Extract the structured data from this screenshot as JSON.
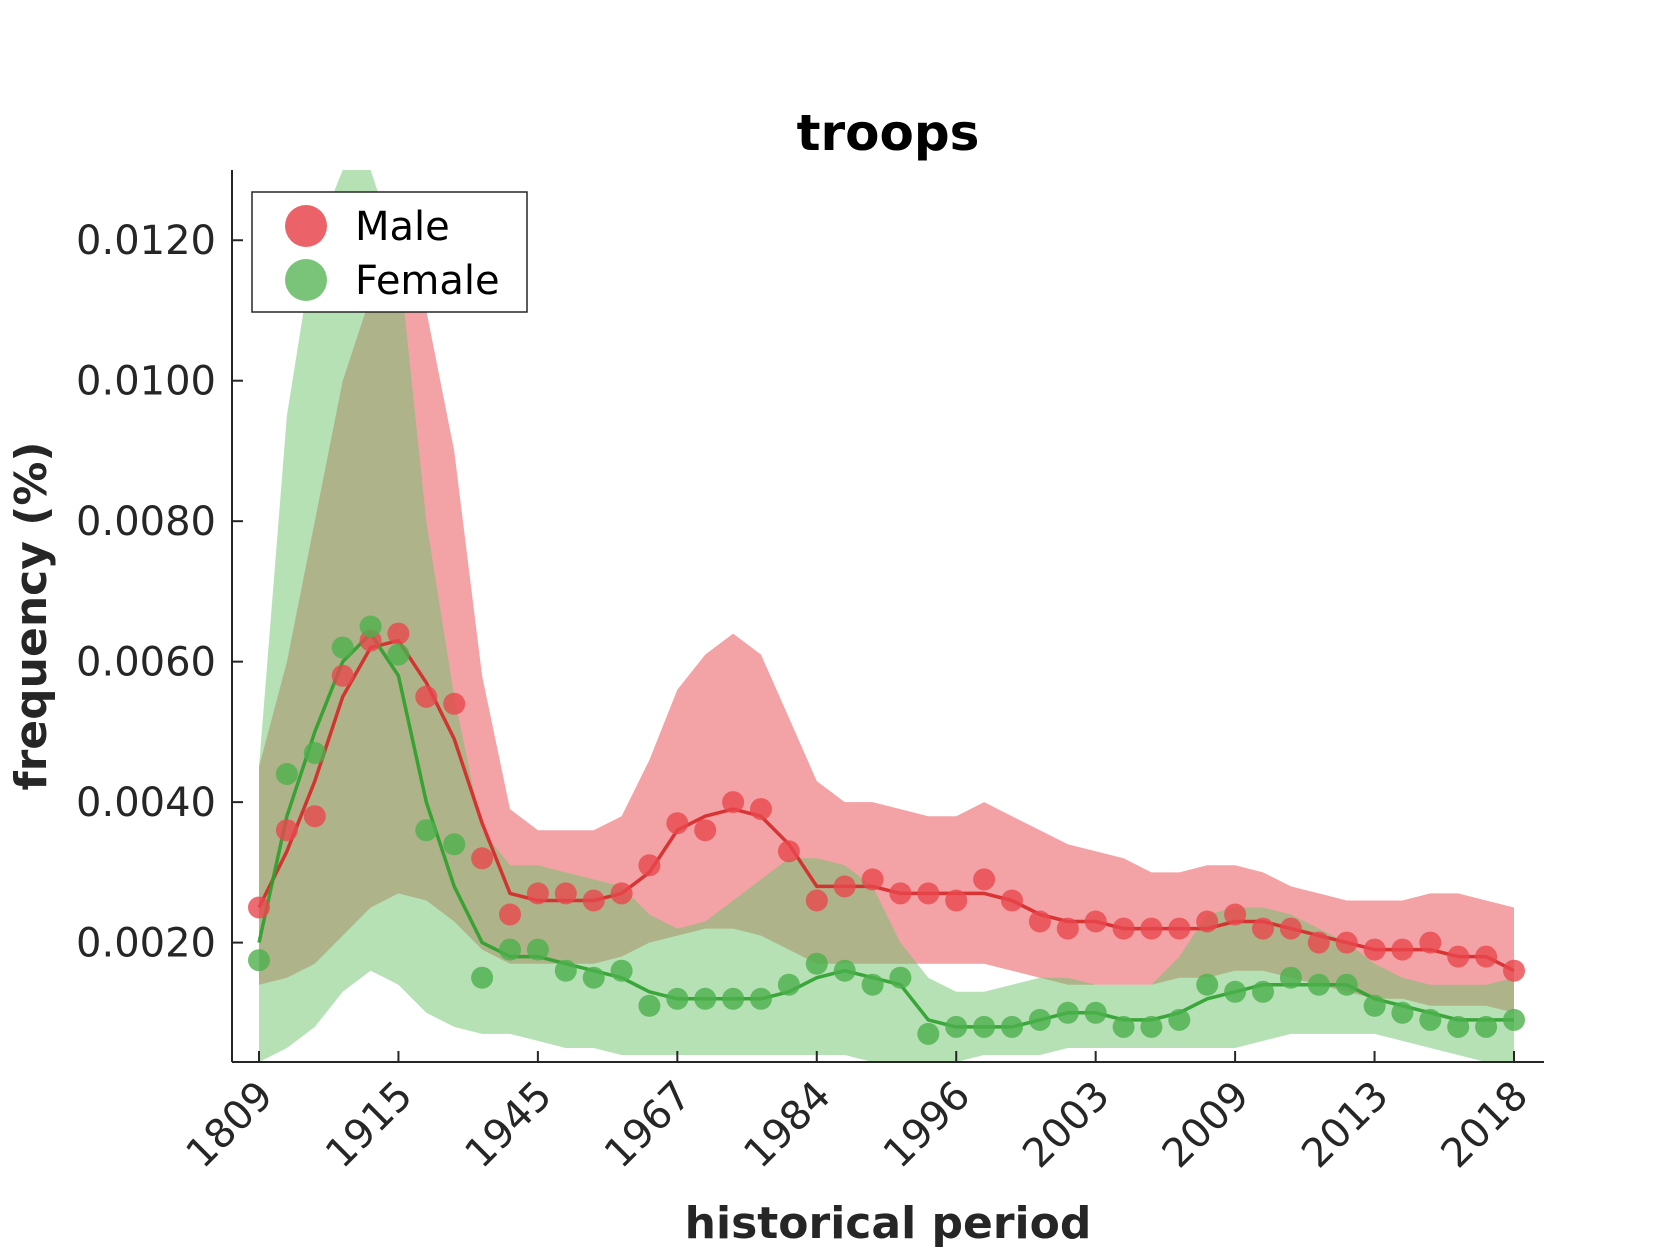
{
  "chart_data": {
    "type": "line",
    "title": "troops",
    "xlabel": "historical period",
    "ylabel": "frequency (%)",
    "ylim": [
      0.0003,
      0.013
    ],
    "yticks": [
      0.002,
      0.004,
      0.006,
      0.008,
      0.01,
      0.012
    ],
    "ytick_labels": [
      "0.0020",
      "0.0040",
      "0.0060",
      "0.0080",
      "0.0100",
      "0.0120"
    ],
    "xtick_labels": [
      "1809",
      "1915",
      "1945",
      "1967",
      "1984",
      "1996",
      "2003",
      "2009",
      "2013",
      "2018"
    ],
    "grid": false,
    "legend_position": "top-left",
    "legend": [
      "Male",
      "Female"
    ],
    "n_points": 46,
    "series": [
      {
        "name": "Male",
        "color": "#d62728",
        "band_color": "#e8474d",
        "dot_color": "#e8474d",
        "points": [
          0.0025,
          0.0036,
          0.0038,
          0.0058,
          0.0063,
          0.0064,
          0.0055,
          0.0054,
          0.0032,
          0.0024,
          0.0027,
          0.0027,
          0.0026,
          0.0027,
          0.0031,
          0.0037,
          0.0036,
          0.004,
          0.0039,
          0.0033,
          0.0026,
          0.0028,
          0.0029,
          0.0027,
          0.0027,
          0.0026,
          0.0029,
          0.0026,
          0.0023,
          0.0022,
          0.0023,
          0.0022,
          0.0022,
          0.0022,
          0.0023,
          0.0024,
          0.0022,
          0.0022,
          0.002,
          0.002,
          0.0019,
          0.0019,
          0.002,
          0.0018,
          0.0018,
          0.0016
        ],
        "smooth": [
          0.0025,
          0.0033,
          0.0043,
          0.0055,
          0.0062,
          0.0063,
          0.0057,
          0.0049,
          0.0037,
          0.0027,
          0.0026,
          0.0026,
          0.0026,
          0.0027,
          0.003,
          0.0036,
          0.0038,
          0.0039,
          0.0038,
          0.0034,
          0.0028,
          0.0028,
          0.0028,
          0.0027,
          0.0027,
          0.0027,
          0.0027,
          0.0026,
          0.0024,
          0.0023,
          0.0023,
          0.0022,
          0.0022,
          0.0022,
          0.0022,
          0.0023,
          0.0023,
          0.0022,
          0.0021,
          0.002,
          0.0019,
          0.0019,
          0.0019,
          0.0018,
          0.0018,
          0.0016
        ],
        "upper": [
          0.0045,
          0.006,
          0.008,
          0.01,
          0.0112,
          0.0118,
          0.011,
          0.009,
          0.0058,
          0.0039,
          0.0036,
          0.0036,
          0.0036,
          0.0038,
          0.0046,
          0.0056,
          0.0061,
          0.0064,
          0.0061,
          0.0052,
          0.0043,
          0.004,
          0.004,
          0.0039,
          0.0038,
          0.0038,
          0.004,
          0.0038,
          0.0036,
          0.0034,
          0.0033,
          0.0032,
          0.003,
          0.003,
          0.0031,
          0.0031,
          0.003,
          0.0028,
          0.0027,
          0.0026,
          0.0026,
          0.0026,
          0.0027,
          0.0027,
          0.0026,
          0.0025
        ],
        "lower": [
          0.0014,
          0.0015,
          0.0017,
          0.0021,
          0.0025,
          0.0027,
          0.0026,
          0.0023,
          0.0019,
          0.0017,
          0.0017,
          0.0017,
          0.0017,
          0.0018,
          0.002,
          0.0021,
          0.0022,
          0.0022,
          0.0021,
          0.0019,
          0.0017,
          0.0017,
          0.0017,
          0.0017,
          0.0017,
          0.0017,
          0.0017,
          0.0016,
          0.0015,
          0.0014,
          0.0014,
          0.0014,
          0.0014,
          0.0015,
          0.0015,
          0.0016,
          0.0016,
          0.0015,
          0.0014,
          0.0013,
          0.0012,
          0.0012,
          0.0011,
          0.0011,
          0.0011,
          0.001
        ]
      },
      {
        "name": "Female",
        "color": "#2ca02c",
        "band_color": "#6cc36c",
        "dot_color": "#4cb04c",
        "points": [
          0.00175,
          0.0044,
          0.0047,
          0.0062,
          0.0065,
          0.0061,
          0.0036,
          0.0034,
          0.0015,
          0.0019,
          0.0019,
          0.0016,
          0.0015,
          0.0016,
          0.0011,
          0.0012,
          0.0012,
          0.0012,
          0.0012,
          0.0014,
          0.0017,
          0.0016,
          0.0014,
          0.0015,
          0.0007,
          0.0008,
          0.0008,
          0.0008,
          0.0009,
          0.001,
          0.001,
          0.0008,
          0.0008,
          0.0009,
          0.0014,
          0.0013,
          0.0013,
          0.0015,
          0.0014,
          0.0014,
          0.0011,
          0.001,
          0.0009,
          0.0008,
          0.0008,
          0.0009
        ],
        "smooth": [
          0.002,
          0.0038,
          0.005,
          0.006,
          0.0064,
          0.0058,
          0.004,
          0.0028,
          0.002,
          0.0018,
          0.0018,
          0.0017,
          0.0016,
          0.0015,
          0.0013,
          0.0012,
          0.0012,
          0.0012,
          0.0012,
          0.0013,
          0.0015,
          0.0016,
          0.0015,
          0.0014,
          0.0009,
          0.0008,
          0.0008,
          0.0008,
          0.0009,
          0.001,
          0.001,
          0.0009,
          0.0009,
          0.001,
          0.0012,
          0.0013,
          0.0014,
          0.0014,
          0.0014,
          0.0014,
          0.0012,
          0.0011,
          0.001,
          0.0009,
          0.0009,
          0.0009
        ],
        "upper": [
          0.0045,
          0.0095,
          0.012,
          0.013,
          0.013,
          0.0118,
          0.008,
          0.0055,
          0.0036,
          0.0031,
          0.0031,
          0.003,
          0.0029,
          0.0028,
          0.0024,
          0.0022,
          0.0023,
          0.0026,
          0.0029,
          0.0032,
          0.0032,
          0.0031,
          0.0028,
          0.002,
          0.0015,
          0.0013,
          0.0013,
          0.0014,
          0.0015,
          0.0015,
          0.0014,
          0.0014,
          0.0014,
          0.0018,
          0.0024,
          0.0025,
          0.0025,
          0.0024,
          0.0022,
          0.002,
          0.0017,
          0.0015,
          0.0014,
          0.0014,
          0.0014,
          0.0015
        ],
        "lower": [
          0.0003,
          0.0005,
          0.0008,
          0.0013,
          0.0016,
          0.0014,
          0.001,
          0.0008,
          0.0007,
          0.0007,
          0.0006,
          0.0005,
          0.0005,
          0.0004,
          0.0004,
          0.0004,
          0.0004,
          0.0004,
          0.0004,
          0.0004,
          0.0004,
          0.0004,
          0.0003,
          0.0003,
          0.0003,
          0.0003,
          0.0004,
          0.0004,
          0.0004,
          0.0005,
          0.0005,
          0.0005,
          0.0005,
          0.0005,
          0.0005,
          0.0005,
          0.0006,
          0.0007,
          0.0007,
          0.0007,
          0.0007,
          0.0006,
          0.0005,
          0.0004,
          0.0003,
          0.0003
        ]
      }
    ]
  }
}
